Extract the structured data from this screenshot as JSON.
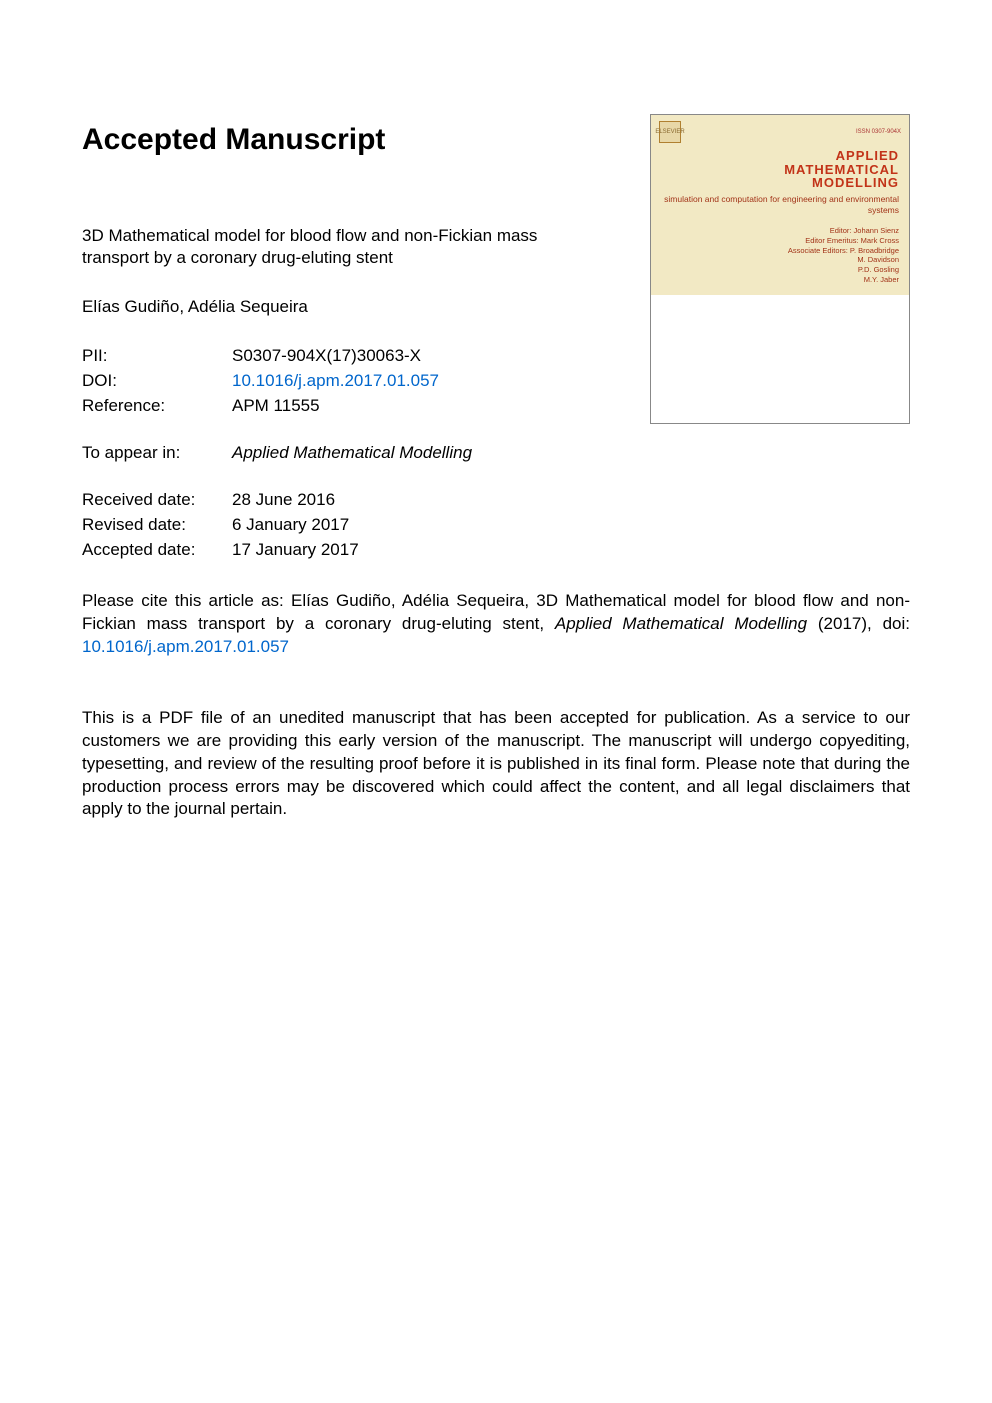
{
  "heading": "Accepted Manuscript",
  "article": {
    "title": "3D Mathematical model for blood flow and non-Fickian mass transport by a coronary drug-eluting stent",
    "authors": "Elías Gudiño, Adélia Sequeira"
  },
  "meta": {
    "pii_label": "PII:",
    "pii_value": "S0307-904X(17)30063-X",
    "doi_label": "DOI:",
    "doi_value": "10.1016/j.apm.2017.01.057",
    "ref_label": "Reference:",
    "ref_value": "APM 11555",
    "appear_label": "To appear in:",
    "appear_value": "Applied Mathematical Modelling",
    "received_label": "Received date:",
    "received_value": "28 June 2016",
    "revised_label": "Revised date:",
    "revised_value": "6 January 2017",
    "accepted_label": "Accepted date:",
    "accepted_value": "17 January 2017"
  },
  "cite": {
    "prefix": "Please cite this article as: Elías Gudiño, Adélia Sequeira, 3D Mathematical model for blood flow and non-Fickian mass transport by a coronary drug-eluting stent, ",
    "journal": "Applied Mathematical Modelling",
    "year": " (2017), doi: ",
    "doi": "10.1016/j.apm.2017.01.057"
  },
  "disclaimer": "This is a PDF file of an unedited manuscript that has been accepted for publication. As a service to our customers we are providing this early version of the manuscript. The manuscript will undergo copyediting, typesetting, and review of the resulting proof before it is published in its final form. Please note that during the production process errors may be discovered which could affect the content, and all legal disclaimers that apply to the journal pertain.",
  "cover": {
    "issn": "ISSN 0307-904X",
    "logo_text": "ELSEVIER",
    "title_l1": "APPLIED",
    "title_l2": "MATHEMATICAL",
    "title_l3": "MODELLING",
    "subtitle": "simulation and computation for engineering and environmental systems",
    "editors_l1": "Editor: Johann Sienz",
    "editors_l2": "Editor Emeritus: Mark Cross",
    "editors_l3": "Associate Editors: P. Broadbridge",
    "editors_l4": "M. Davidson",
    "editors_l5": "P.D. Gosling",
    "editors_l6": "M.Y. Jaber",
    "colors": {
      "background": "#f2e9c4",
      "title_color": "#c23318",
      "text_color": "#a23318",
      "border": "#888888"
    }
  },
  "colors": {
    "link": "#0066cc",
    "text": "#000000",
    "background": "#ffffff"
  }
}
